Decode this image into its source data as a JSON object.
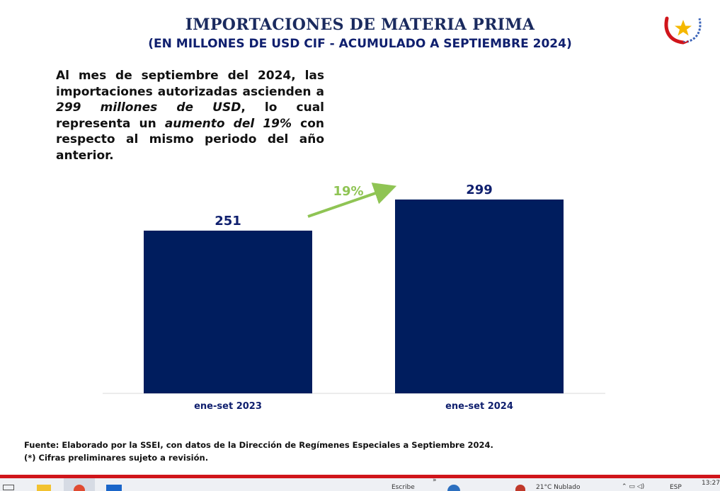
{
  "header": {
    "title": "IMPORTACIONES DE MATERIA PRIMA",
    "subtitle": "(EN MILLONES DE USD CIF - ACUMULADO A SEPTIEMBRE 2024)"
  },
  "summary": {
    "p1": "Al mes de septiembre del 2024, las importaciones autorizadas ascienden a ",
    "em1": "299 millones de USD",
    "p2": ", lo cual representa un ",
    "em2": "aumento del 19%",
    "p3": " con respecto al mismo periodo del año anterior."
  },
  "chart_data": {
    "type": "bar",
    "categories": [
      "ene-set 2023",
      "ene-set 2024"
    ],
    "values": [
      251,
      299
    ],
    "data_labels": [
      "251",
      "299"
    ],
    "annotation": "19%",
    "bar_color": "#001d5e",
    "annotation_color": "#8fc454",
    "ylim": [
      0,
      299
    ],
    "grid": false,
    "legend": "none"
  },
  "footer": {
    "source_label": "Fuente:",
    "source_text": " Elaborado por la SSEI, con datos de la Dirección de Regímenes Especiales a Septiembre 2024.",
    "note": "(*) Cifras preliminares sujeto a revisión."
  },
  "taskbar": {
    "clock": "13:27",
    "lang": "ESP",
    "weather": "21°C Nublado",
    "search": "Escribe"
  },
  "colors": {
    "title": "#1a2a5e",
    "subtitle": "#0f1f6e",
    "red_line": "#d0151b"
  }
}
